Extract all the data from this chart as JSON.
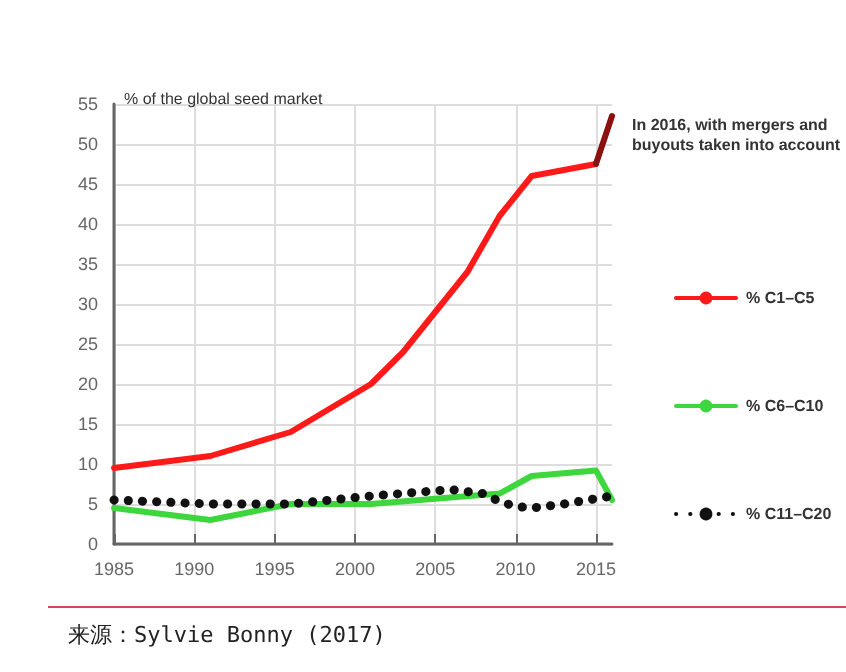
{
  "chart_data": {
    "type": "line",
    "ylabel": "% of the global seed market",
    "annotations": [
      "In 2016, with mergers and buyouts taken into account",
      "来源：Sylvie Bonny (2017)"
    ],
    "xlim": [
      1985,
      2016
    ],
    "xticks": [
      1985,
      1990,
      1995,
      2000,
      2005,
      2010,
      2015
    ],
    "ylim": [
      0,
      55
    ],
    "yticks": [
      0,
      5,
      10,
      15,
      20,
      25,
      30,
      35,
      40,
      45,
      50,
      55
    ],
    "grid": true,
    "legend": "right",
    "marker": "none",
    "series": [
      {
        "name": "% C1–C5",
        "color": "#ff1a1a",
        "line_style": "solid",
        "x": [
          1985,
          1991,
          1996,
          2001,
          2003,
          2007,
          2009,
          2011,
          2015
        ],
        "values": [
          9.5,
          11,
          14,
          20,
          24,
          34,
          41,
          46,
          47.5
        ]
      },
      {
        "color": "#8b1010",
        "line_style": "solid",
        "x": [
          2015,
          2016
        ],
        "values": [
          47.5,
          53.5
        ]
      },
      {
        "name": "% C6–C10",
        "color": "#3dd63d",
        "line_style": "solid",
        "x": [
          1985,
          1991,
          1996,
          2001,
          2009,
          2011,
          2015,
          2016
        ],
        "values": [
          4.5,
          3,
          5,
          5,
          6.3,
          8.5,
          9.2,
          5.5
        ]
      },
      {
        "name": "% C11–C20",
        "color": "#111111",
        "line_style": "dotted",
        "x": [
          1985,
          1991,
          1996,
          2001,
          2006,
          2008,
          2009,
          2010,
          2011,
          2013,
          2016
        ],
        "values": [
          5.5,
          5,
          5,
          6,
          6.8,
          6.3,
          5.3,
          4.7,
          4.5,
          5,
          6
        ]
      }
    ]
  }
}
